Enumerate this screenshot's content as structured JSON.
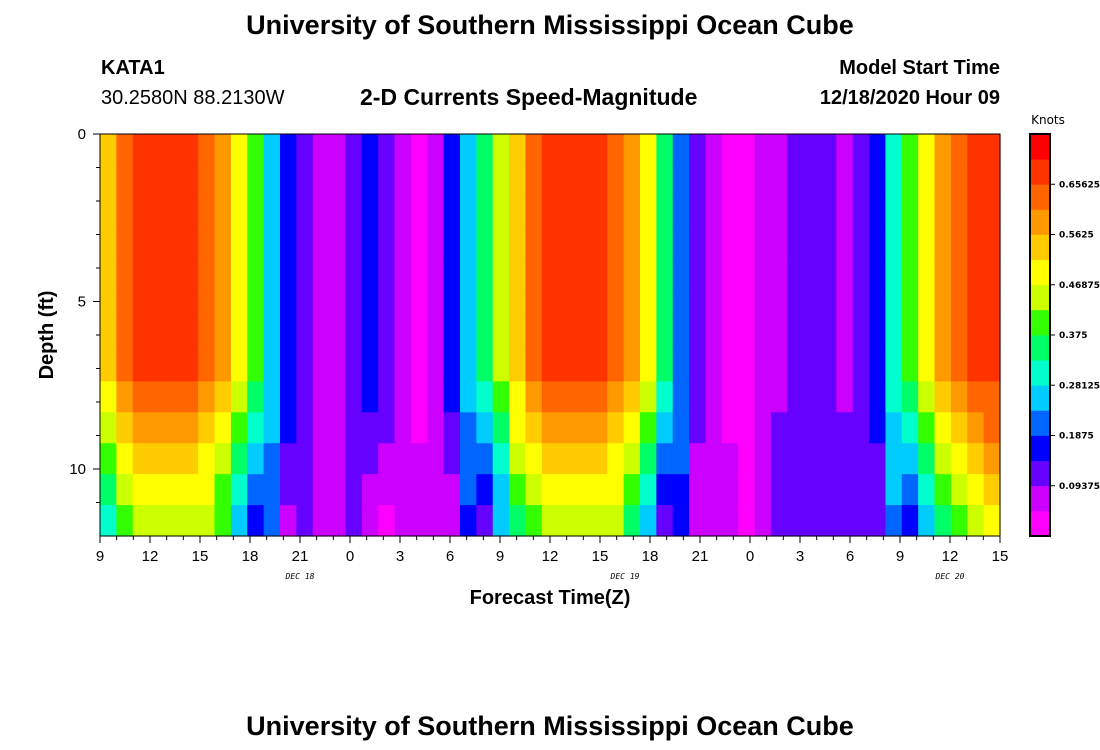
{
  "page": {
    "title": "University of Southern Mississippi Ocean Cube",
    "station": "KATA1",
    "coords": "30.2580N 88.2130W",
    "subtitle": "2-D Currents Speed-Magnitude",
    "model_label": "Model Start Time",
    "model_time": "12/18/2020 Hour 09",
    "footer_title": "University of Southern Mississippi Ocean Cube"
  },
  "colors": {
    "palette": [
      "#ff00ff",
      "#cc00ff",
      "#6600ff",
      "#0000ff",
      "#0066ff",
      "#00ccff",
      "#00ffcc",
      "#00ff66",
      "#33ff00",
      "#ccff00",
      "#ffff00",
      "#ffcc00",
      "#ff9900",
      "#ff6600",
      "#ff3300",
      "#ff0000"
    ]
  },
  "chart_data": {
    "type": "heatmap",
    "title": "2-D Currents Speed-Magnitude",
    "xlabel": "Forecast Time(Z)",
    "ylabel": "Depth (ft)",
    "x_ticks": [
      "9",
      "12",
      "15",
      "18",
      "21",
      "0",
      "3",
      "6",
      "9",
      "12",
      "15",
      "18",
      "21",
      "0",
      "3",
      "6",
      "9",
      "12",
      "15"
    ],
    "date_labels": [
      {
        "label": "DEC 18",
        "hour": 12
      },
      {
        "label": "DEC 19",
        "hour": 31.5
      },
      {
        "label": "DEC 20",
        "hour": 51
      }
    ],
    "y_ticks": [
      "0",
      "5",
      "10"
    ],
    "ylim": [
      0,
      12
    ],
    "xlim_hours_from_start": [
      0,
      54
    ],
    "colorbar": {
      "unit": "Knots",
      "range": [
        0,
        0.75
      ],
      "ticks": [
        "0.65625",
        "0.5625",
        "0.46875",
        "0.375",
        "0.28125",
        "0.1875",
        "0.09375"
      ]
    },
    "depth_levels_ft": [
      0,
      1,
      2,
      3,
      4,
      5,
      6,
      7,
      8,
      9,
      10,
      11,
      12
    ],
    "hourly_surface_speed_knots": [
      0.55,
      0.62,
      0.66,
      0.67,
      0.67,
      0.66,
      0.65,
      0.6,
      0.5,
      0.38,
      0.27,
      0.17,
      0.1,
      0.05,
      0.05,
      0.1,
      0.15,
      0.12,
      0.06,
      0.04,
      0.07,
      0.15,
      0.25,
      0.35,
      0.46,
      0.56,
      0.63,
      0.67,
      0.68,
      0.68,
      0.67,
      0.65,
      0.58,
      0.47,
      0.34,
      0.23,
      0.13,
      0.07,
      0.04,
      0.03,
      0.05,
      0.09,
      0.1,
      0.11,
      0.1,
      0.09,
      0.1,
      0.18,
      0.3,
      0.4,
      0.5,
      0.58,
      0.64,
      0.68,
      0.7
    ]
  }
}
